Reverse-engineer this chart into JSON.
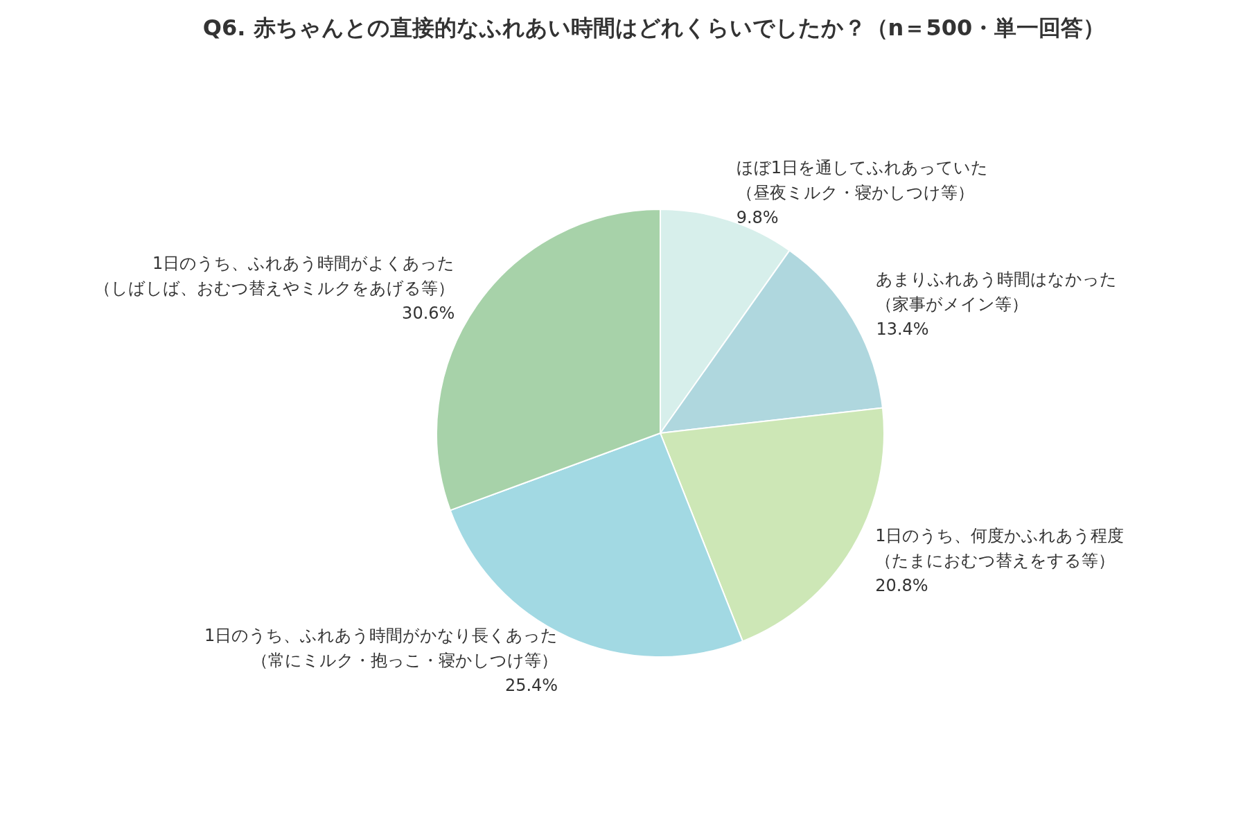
{
  "chart_data": {
    "type": "pie",
    "title": "Q6. 赤ちゃんとの直接的なふれあい時間はどれくらいでしたか？（n＝500・単一回答）",
    "categories": [
      "ほぼ1日を通してふれあっていた（昼夜ミルク・寝かしつけ等）",
      "あまりふれあう時間はなかった（家事がメイン等）",
      "1日のうち、何度かふれあう程度（たまにおむつ替えをする等）",
      "1日のうち、ふれあう時間がかなり長くあった（常にミルク・抱っこ・寝かしつけ等）",
      "1日のうち、ふれあう時間がよくあった（しばしば、おむつ替えやミルクをあげる等）"
    ],
    "values": [
      9.8,
      13.4,
      20.8,
      25.4,
      30.6
    ],
    "value_labels": [
      "9.8%",
      "13.4%",
      "20.8%",
      "25.4%",
      "30.6%"
    ],
    "colors": [
      "#d7efeb",
      "#afd7de",
      "#cde7b6",
      "#a2d9e3",
      "#a7d2a9"
    ],
    "legend": false
  }
}
